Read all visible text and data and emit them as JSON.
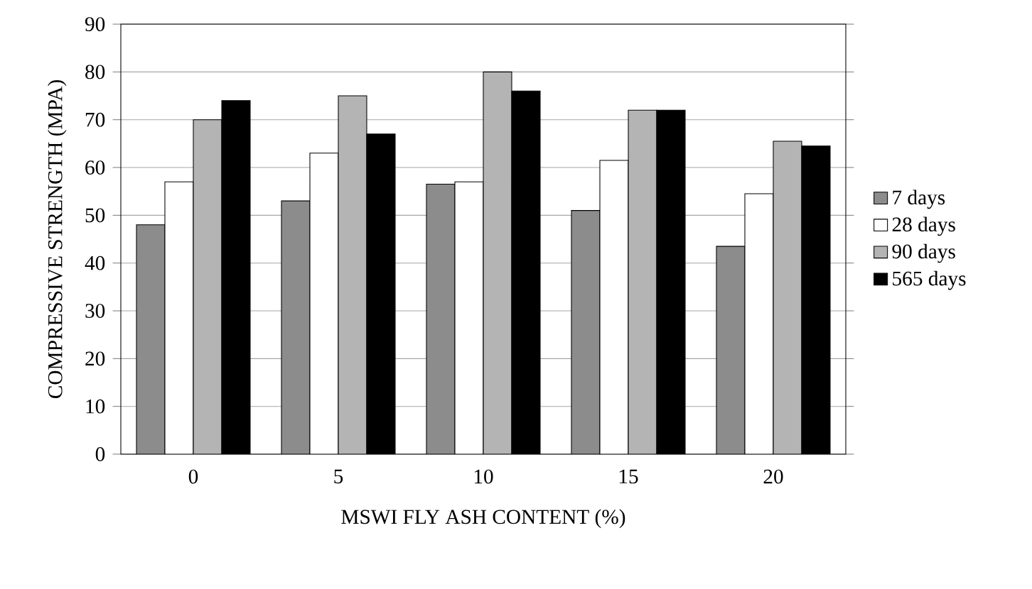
{
  "chart_data": {
    "type": "bar",
    "xlabel": "MSWI FLY ASH CONTENT (%)",
    "ylabel": "COMPRESSIVE STRENGTH (MPA)",
    "categories": [
      "0",
      "5",
      "10",
      "15",
      "20"
    ],
    "series": [
      {
        "name": "7 days",
        "color": "#8c8c8c",
        "values": [
          48,
          53,
          56.5,
          51,
          43.5
        ]
      },
      {
        "name": "28 days",
        "color": "#ffffff",
        "values": [
          57,
          63,
          57,
          61.5,
          54.5
        ]
      },
      {
        "name": "90 days",
        "color": "#b4b4b4",
        "values": [
          70,
          75,
          80,
          72,
          65.5
        ]
      },
      {
        "name": "565 days",
        "color": "#000000",
        "values": [
          74,
          67,
          76,
          72,
          64.5
        ]
      }
    ],
    "ylim": [
      0,
      90
    ],
    "yticks": [
      0,
      10,
      20,
      30,
      40,
      50,
      60,
      70,
      80,
      90
    ],
    "grid": "y",
    "legend": "right"
  }
}
